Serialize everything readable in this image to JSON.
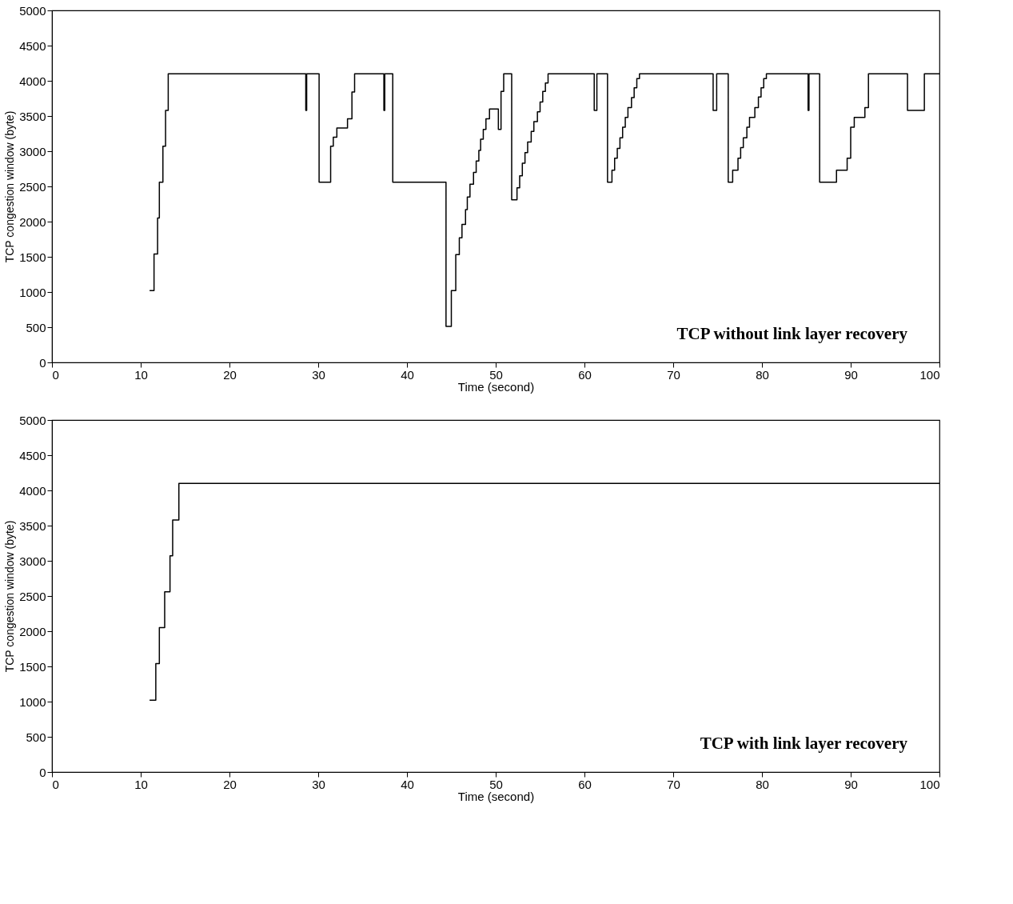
{
  "chart_data": [
    {
      "type": "step",
      "xlabel": "Time (second)",
      "ylabel": "TCP congestion window (byte)",
      "xlim": [
        0,
        100
      ],
      "ylim": [
        0,
        5000
      ],
      "xticks": [
        0,
        10,
        20,
        30,
        40,
        50,
        60,
        70,
        80,
        90,
        100
      ],
      "yticks": [
        0,
        500,
        1000,
        1500,
        2000,
        2500,
        3000,
        3500,
        4000,
        4500,
        5000
      ],
      "annotations": [
        "TCP without link layer recovery"
      ],
      "x": [
        11.0,
        11.5,
        11.9,
        12.1,
        12.5,
        12.8,
        13.1,
        28.6,
        28.7,
        30.1,
        31.4,
        31.7,
        32.1,
        33.3,
        33.8,
        34.1,
        37.4,
        37.5,
        38.4,
        44.4,
        45.0,
        45.5,
        45.9,
        46.2,
        46.6,
        46.8,
        47.1,
        47.5,
        47.8,
        48.1,
        48.3,
        48.6,
        48.9,
        49.3,
        50.3,
        50.6,
        50.9,
        51.8,
        52.4,
        52.7,
        53.0,
        53.3,
        53.6,
        54.0,
        54.3,
        54.7,
        55.0,
        55.3,
        55.6,
        55.9,
        61.1,
        61.4,
        62.6,
        63.1,
        63.4,
        63.7,
        64.0,
        64.3,
        64.6,
        64.9,
        65.3,
        65.6,
        65.9,
        66.2,
        74.5,
        74.9,
        76.2,
        76.7,
        77.3,
        77.6,
        77.9,
        78.3,
        78.6,
        79.2,
        79.6,
        79.9,
        80.2,
        80.5,
        85.2,
        85.3,
        86.5,
        88.4,
        89.6,
        90.0,
        90.4,
        91.6,
        92.0,
        96.4,
        98.3,
        100.0
      ],
      "series": [
        {
          "color": "#000000",
          "values": [
            1020,
            1540,
            2050,
            2560,
            3070,
            3580,
            4100,
            3580,
            4100,
            2560,
            3070,
            3200,
            3330,
            3460,
            3840,
            4100,
            3580,
            4100,
            2560,
            510,
            1020,
            1530,
            1770,
            1960,
            2170,
            2350,
            2530,
            2700,
            2860,
            3010,
            3170,
            3310,
            3460,
            3600,
            3310,
            3850,
            4100,
            2310,
            2480,
            2650,
            2830,
            2980,
            3130,
            3280,
            3420,
            3560,
            3700,
            3850,
            3970,
            4100,
            3580,
            4100,
            2560,
            2730,
            2900,
            3040,
            3190,
            3340,
            3480,
            3620,
            3760,
            3900,
            4030,
            4100,
            3580,
            4100,
            2560,
            2730,
            2900,
            3050,
            3190,
            3340,
            3480,
            3620,
            3770,
            3900,
            4030,
            4100,
            3580,
            4100,
            2560,
            2730,
            2900,
            3340,
            3480,
            3620,
            4100,
            3580,
            4100,
            4100
          ]
        }
      ]
    },
    {
      "type": "step",
      "xlabel": "Time (second)",
      "ylabel": "TCP congestion window (byte)",
      "xlim": [
        0,
        100
      ],
      "ylim": [
        0,
        5000
      ],
      "xticks": [
        0,
        10,
        20,
        30,
        40,
        50,
        60,
        70,
        80,
        90,
        100
      ],
      "yticks": [
        0,
        500,
        1000,
        1500,
        2000,
        2500,
        3000,
        3500,
        4000,
        4500,
        5000
      ],
      "annotations": [
        "TCP with link layer recovery"
      ],
      "x": [
        11.0,
        11.7,
        12.1,
        12.7,
        13.3,
        13.6,
        14.3,
        100.0
      ],
      "series": [
        {
          "color": "#000000",
          "values": [
            1020,
            1540,
            2050,
            2560,
            3070,
            3580,
            4100,
            4100
          ]
        }
      ]
    }
  ]
}
